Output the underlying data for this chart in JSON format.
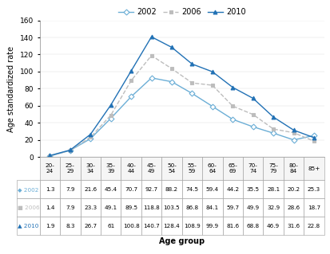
{
  "age_groups": [
    "20-\n24",
    "25-\n29",
    "30-\n34",
    "35-\n39",
    "40-\n44",
    "45-\n49",
    "50-\n54",
    "55-\n59",
    "60-\n64",
    "65-\n69",
    "70-\n74",
    "75-\n79",
    "80-\n84",
    "85+"
  ],
  "col_labels": [
    "20-\n24",
    "25-\n29",
    "30-\n34",
    "35-\n39",
    "40-\n44",
    "45-\n49",
    "50-\n54",
    "55-\n59",
    "60-\n64",
    "65-\n69",
    "70-\n74",
    "75-\n79",
    "80-\n84",
    "85+"
  ],
  "series": {
    "2002": [
      1.3,
      7.9,
      21.6,
      45.4,
      70.7,
      92.7,
      88.2,
      74.5,
      59.4,
      44.2,
      35.5,
      28.1,
      20.2,
      25.3
    ],
    "2006": [
      1.4,
      7.9,
      23.3,
      49.1,
      89.5,
      118.8,
      103.5,
      86.8,
      84.1,
      59.7,
      49.9,
      32.9,
      28.6,
      18.7
    ],
    "2010": [
      1.9,
      8.3,
      26.7,
      61.0,
      100.8,
      140.7,
      128.4,
      108.9,
      99.9,
      81.6,
      68.8,
      46.9,
      31.6,
      22.8
    ]
  },
  "colors": {
    "2002": "#6baed6",
    "2006": "#bdbdbd",
    "2010": "#2171b5"
  },
  "markers": {
    "2002": "D",
    "2006": "s",
    "2010": "^"
  },
  "line_styles": {
    "2002": "-",
    "2006": "--",
    "2010": "-"
  },
  "ylabel": "Age standardized rate",
  "xlabel": "Age group",
  "ylim": [
    0,
    160
  ],
  "yticks": [
    0,
    20,
    40,
    60,
    80,
    100,
    120,
    140,
    160
  ],
  "axis_fontsize": 7,
  "tick_fontsize": 6.5,
  "legend_fontsize": 7,
  "table_data": [
    [
      "1.3",
      "7.9",
      "21.6",
      "45.4",
      "70.7",
      "92.7",
      "88.2",
      "74.5",
      "59.4",
      "44.2",
      "35.5",
      "28.1",
      "20.2",
      "25.3"
    ],
    [
      "1.4",
      "7.9",
      "23.3",
      "49.1",
      "89.5",
      "118.8",
      "103.5",
      "86.8",
      "84.1",
      "59.7",
      "49.9",
      "32.9",
      "28.6",
      "18.7"
    ],
    [
      "1.9",
      "8.3",
      "26.7",
      "61",
      "100.8",
      "140.7",
      "128.4",
      "108.9",
      "99.9",
      "81.6",
      "68.8",
      "46.9",
      "31.6",
      "22.8"
    ]
  ],
  "bg_color": "#ffffff"
}
